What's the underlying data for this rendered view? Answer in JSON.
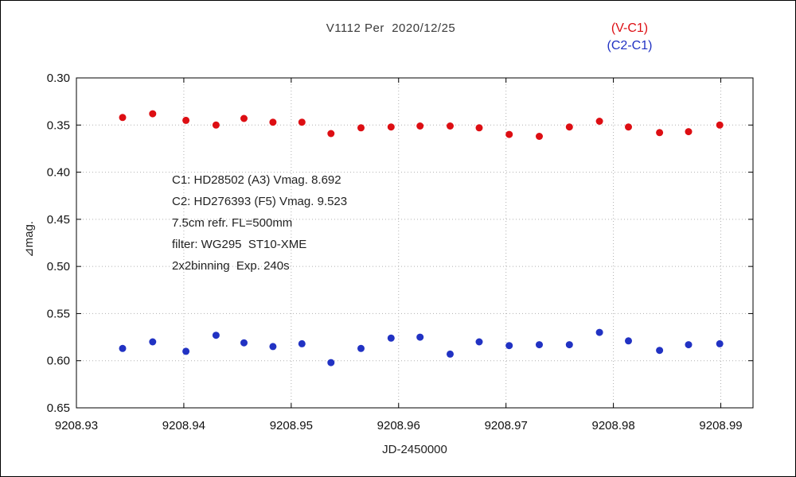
{
  "page": {
    "background": "#ffffff",
    "border_color": "#000000",
    "grid_color": "#b0b0b0",
    "axis_color": "#000000",
    "tick_label_color": "#111111"
  },
  "chart_data": {
    "type": "scatter",
    "title": "V1112 Per  2020/12/25",
    "xlabel": "JD-2450000",
    "ylabel": "⊿mag.",
    "xlim": [
      9208.93,
      9208.993
    ],
    "ylim": [
      0.3,
      0.65
    ],
    "y_axis_direction": "magnitude-increases-downward",
    "grid": "dotted",
    "x_ticks": [
      "9208.93",
      "9208.94",
      "9208.95",
      "9208.96",
      "9208.97",
      "9208.98",
      "9208.99"
    ],
    "y_ticks": [
      "0.30",
      "0.35",
      "0.40",
      "0.45",
      "0.50",
      "0.55",
      "0.60",
      "0.65"
    ],
    "legend": [
      {
        "label": "(V-C1)",
        "color": "#dd0e13"
      },
      {
        "label": "(C2-C1)",
        "color": "#2132c3"
      }
    ],
    "annotations": [
      "C1: HD28502 (A3) Vmag. 8.692",
      "C2: HD276393 (F5) Vmag. 9.523",
      "7.5cm refr. FL=500mm",
      "filter: WG295  ST10-XME",
      "2x2binning  Exp. 240s"
    ],
    "series": [
      {
        "name": "(V-C1)",
        "color": "#dd0e13",
        "x": [
          9208.9343,
          9208.9371,
          9208.9402,
          9208.943,
          9208.9456,
          9208.9483,
          9208.951,
          9208.9537,
          9208.9565,
          9208.9593,
          9208.962,
          9208.9648,
          9208.9675,
          9208.9703,
          9208.9731,
          9208.9759,
          9208.9787,
          9208.9814,
          9208.9843,
          9208.987,
          9208.9899
        ],
        "y": [
          0.342,
          0.338,
          0.345,
          0.35,
          0.343,
          0.347,
          0.347,
          0.359,
          0.353,
          0.352,
          0.351,
          0.351,
          0.353,
          0.36,
          0.362,
          0.352,
          0.346,
          0.352,
          0.358,
          0.357,
          0.35
        ]
      },
      {
        "name": "(C2-C1)",
        "color": "#2132c3",
        "x": [
          9208.9343,
          9208.9371,
          9208.9402,
          9208.943,
          9208.9456,
          9208.9483,
          9208.951,
          9208.9537,
          9208.9565,
          9208.9593,
          9208.962,
          9208.9648,
          9208.9675,
          9208.9703,
          9208.9731,
          9208.9759,
          9208.9787,
          9208.9814,
          9208.9843,
          9208.987,
          9208.9899
        ],
        "y": [
          0.587,
          0.58,
          0.59,
          0.573,
          0.581,
          0.585,
          0.582,
          0.602,
          0.587,
          0.576,
          0.575,
          0.593,
          0.58,
          0.584,
          0.583,
          0.583,
          0.57,
          0.579,
          0.589,
          0.583,
          0.582
        ]
      }
    ]
  }
}
